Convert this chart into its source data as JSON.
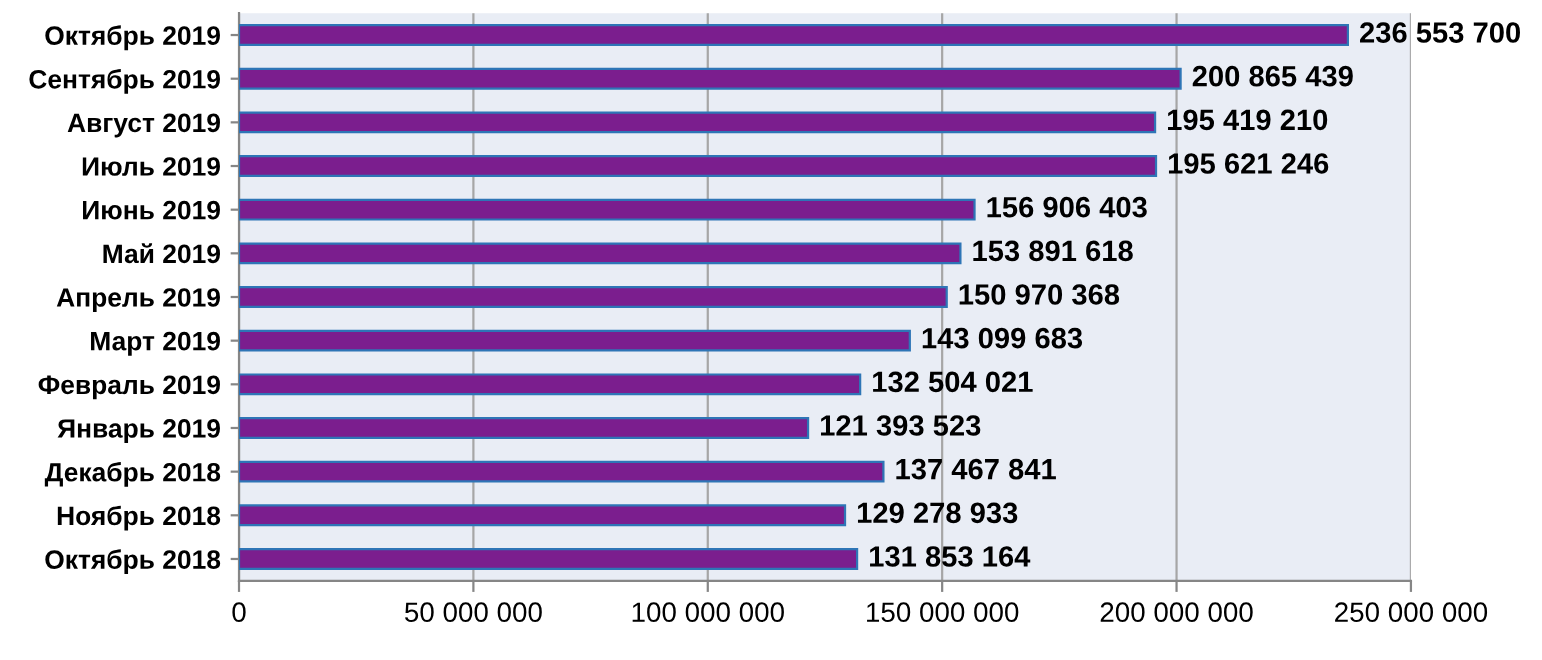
{
  "chart_data": {
    "type": "bar",
    "orientation": "horizontal",
    "categories": [
      "Октябрь 2019",
      "Сентябрь 2019",
      "Август 2019",
      "Июль 2019",
      "Июнь 2019",
      "Май 2019",
      "Апрель 2019",
      "Март 2019",
      "Февраль 2019",
      "Январь 2019",
      "Декабрь 2018",
      "Ноябрь 2018",
      "Октябрь 2018"
    ],
    "values": [
      236553700,
      200865439,
      195419210,
      195621246,
      156906403,
      153891618,
      150970368,
      143099683,
      132504021,
      121393523,
      137467841,
      129278933,
      131853164
    ],
    "value_labels": [
      "236 553 700",
      "200 865 439",
      "195 419 210",
      "195 621 246",
      "156 906 403",
      "153 891 618",
      "150 970 368",
      "143 099 683",
      "132 504 021",
      "121 393 523",
      "137 467 841",
      "129 278 933",
      "131 853 164"
    ],
    "color": "#7b1e8e",
    "xlim": [
      0,
      250000000
    ],
    "xticks": [
      0,
      {
        "value": 50000000,
        "label": "50 000 000"
      },
      {
        "value": 100000000,
        "label": "100 000 000"
      },
      {
        "value": 150000000,
        "label": "150 000 000"
      },
      {
        "value": 200000000,
        "label": "200 000 000"
      },
      {
        "value": 250000000,
        "label": "250 000 000"
      }
    ],
    "grid": "x"
  }
}
